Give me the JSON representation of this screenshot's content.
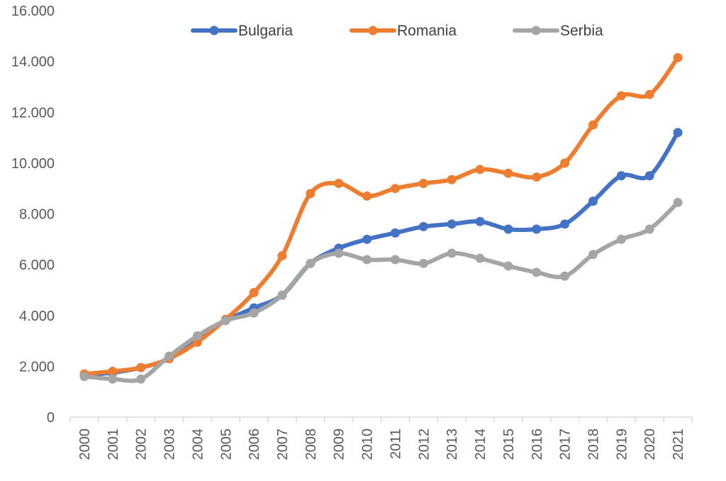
{
  "chart_data": {
    "type": "line",
    "title": "",
    "xlabel": "",
    "ylabel": "",
    "categories": [
      "2000",
      "2001",
      "2002",
      "2003",
      "2004",
      "2005",
      "2006",
      "2007",
      "2008",
      "2009",
      "2010",
      "2011",
      "2012",
      "2013",
      "2014",
      "2015",
      "2016",
      "2017",
      "2018",
      "2019",
      "2020",
      "2021"
    ],
    "y_ticks": [
      "0",
      "2.000",
      "4.000",
      "6.000",
      "8.000",
      "10.000",
      "12.000",
      "14.000",
      "16.000"
    ],
    "ylim": [
      0,
      16000
    ],
    "grid": false,
    "legend": "top",
    "series": [
      {
        "name": "Bulgaria",
        "color": "#4472C4",
        "values": [
          1650,
          1750,
          1950,
          2300,
          3100,
          3800,
          4300,
          4800,
          6050,
          6650,
          7000,
          7250,
          7500,
          7600,
          7700,
          7400,
          7400,
          7600,
          8500,
          9500,
          9500,
          11200
        ]
      },
      {
        "name": "Romania",
        "color": "#ED7D31",
        "values": [
          1700,
          1800,
          1950,
          2300,
          2950,
          3850,
          4900,
          6350,
          8800,
          9200,
          8700,
          9000,
          9200,
          9350,
          9750,
          9600,
          9450,
          10000,
          11500,
          12650,
          12700,
          14150
        ]
      },
      {
        "name": "Serbia",
        "color": "#A5A5A5",
        "values": [
          1600,
          1500,
          1500,
          2400,
          3200,
          3800,
          4100,
          4800,
          6050,
          6450,
          6200,
          6200,
          6050,
          6450,
          6250,
          5950,
          5700,
          5550,
          6400,
          7000,
          7400,
          8450
        ]
      }
    ]
  }
}
